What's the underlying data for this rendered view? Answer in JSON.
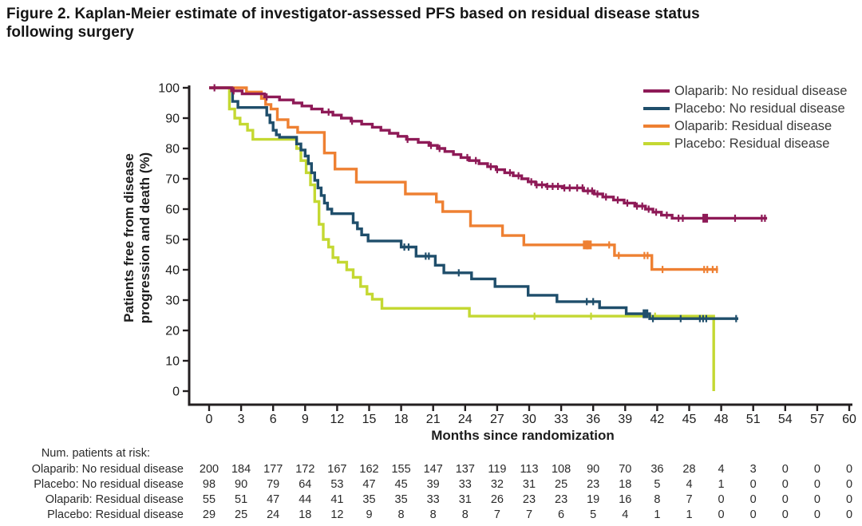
{
  "title": {
    "line1": "Figure 2. Kaplan-Meier estimate of investigator-assessed PFS based on residual disease status",
    "line2": "following surgery"
  },
  "chart_data": {
    "type": "line",
    "subtype": "kaplan-meier-step",
    "xlabel": "Months since randomization",
    "ylabel": "Patients free from disease progression and death (%)",
    "xlim": [
      0,
      60
    ],
    "ylim": [
      0,
      100
    ],
    "x_ticks": [
      0,
      3,
      6,
      9,
      12,
      15,
      18,
      21,
      24,
      27,
      30,
      33,
      36,
      39,
      42,
      45,
      48,
      51,
      54,
      57,
      60
    ],
    "y_ticks": [
      0,
      10,
      20,
      30,
      40,
      50,
      60,
      70,
      80,
      90,
      100
    ],
    "grid": "off",
    "legend_position": "top-right",
    "axis_color": "#231f20",
    "series": [
      {
        "name": "Olaparib: No residual disease",
        "color": "#8e1a57",
        "steps": [
          [
            0,
            100
          ],
          [
            2.1,
            99
          ],
          [
            3.1,
            98
          ],
          [
            5.2,
            97
          ],
          [
            6.6,
            96
          ],
          [
            7.9,
            95
          ],
          [
            8.7,
            94
          ],
          [
            9.6,
            93
          ],
          [
            10.6,
            92
          ],
          [
            11.6,
            91
          ],
          [
            12.4,
            90
          ],
          [
            13.3,
            89
          ],
          [
            14.3,
            88
          ],
          [
            15.3,
            87
          ],
          [
            16.1,
            86
          ],
          [
            16.9,
            85
          ],
          [
            17.7,
            84
          ],
          [
            18.5,
            83
          ],
          [
            19.6,
            82
          ],
          [
            20.6,
            81
          ],
          [
            21.4,
            80
          ],
          [
            22.1,
            79
          ],
          [
            22.9,
            78
          ],
          [
            23.6,
            77
          ],
          [
            24.4,
            76
          ],
          [
            25.3,
            75
          ],
          [
            26.1,
            74
          ],
          [
            26.9,
            73
          ],
          [
            27.7,
            72
          ],
          [
            28.5,
            71
          ],
          [
            29.3,
            70
          ],
          [
            29.9,
            69
          ],
          [
            30.6,
            68
          ],
          [
            31.6,
            67.5
          ],
          [
            33.1,
            67
          ],
          [
            35.1,
            66
          ],
          [
            36.1,
            65
          ],
          [
            36.9,
            64
          ],
          [
            37.9,
            63
          ],
          [
            38.9,
            62
          ],
          [
            39.9,
            61
          ],
          [
            40.9,
            60
          ],
          [
            41.6,
            59
          ],
          [
            42.4,
            58
          ],
          [
            43.4,
            57
          ]
        ],
        "end_month": 52.3,
        "censors": [
          0.5,
          2.3,
          5.4,
          11.2,
          13.4,
          18.6,
          20.8,
          21.6,
          24.2,
          25.0,
          26.4,
          27.0,
          28.2,
          29.0,
          30.2,
          30.7,
          31.2,
          31.7,
          32.2,
          32.7,
          33.3,
          33.8,
          34.5,
          35.0,
          35.5,
          35.9,
          36.4,
          37.2,
          38.3,
          39.2,
          40.1,
          40.6,
          41.2,
          41.9,
          42.9,
          44.0,
          44.4,
          49.3,
          51.8,
          52.1
        ],
        "square_censors": [
          46.5
        ]
      },
      {
        "name": "Placebo: No residual disease",
        "color": "#1f4e6b",
        "steps": [
          [
            0,
            100
          ],
          [
            2.2,
            95.5
          ],
          [
            2.7,
            93.5
          ],
          [
            5.4,
            91
          ],
          [
            5.7,
            88.5
          ],
          [
            6.0,
            86
          ],
          [
            6.3,
            84.5
          ],
          [
            6.6,
            83.7
          ],
          [
            8.2,
            81.5
          ],
          [
            8.6,
            79.5
          ],
          [
            9.0,
            77.5
          ],
          [
            9.3,
            75
          ],
          [
            9.6,
            72
          ],
          [
            9.9,
            69.5
          ],
          [
            10.2,
            67
          ],
          [
            10.5,
            64.5
          ],
          [
            10.8,
            62
          ],
          [
            11.1,
            60
          ],
          [
            11.5,
            58.5
          ],
          [
            13.5,
            55.5
          ],
          [
            13.9,
            53.5
          ],
          [
            14.3,
            51.5
          ],
          [
            14.9,
            49.5
          ],
          [
            18.0,
            47.5
          ],
          [
            19.4,
            44.5
          ],
          [
            21.2,
            41.5
          ],
          [
            22.0,
            39
          ],
          [
            24.6,
            37
          ],
          [
            26.8,
            34.5
          ],
          [
            29.9,
            31.6
          ],
          [
            32.6,
            29.5
          ],
          [
            36.6,
            27.5
          ],
          [
            39.1,
            25.5
          ],
          [
            41.3,
            23.9
          ]
        ],
        "end_month": 49.6,
        "censors": [
          18.3,
          18.7,
          20.3,
          20.6,
          23.4,
          35.4,
          36.0,
          41.6,
          44.2,
          46.0,
          46.3,
          46.6,
          49.4
        ],
        "square_censors": [
          40.9
        ]
      },
      {
        "name": "Olaparib: Residual disease",
        "color": "#ee8032",
        "steps": [
          [
            0,
            100
          ],
          [
            3.5,
            98.6
          ],
          [
            4.9,
            96.5
          ],
          [
            5.3,
            94.5
          ],
          [
            5.8,
            93
          ],
          [
            6.4,
            89.5
          ],
          [
            7.4,
            87
          ],
          [
            8.3,
            85.3
          ],
          [
            10.8,
            78.5
          ],
          [
            11.8,
            73.2
          ],
          [
            13.8,
            68.9
          ],
          [
            18.4,
            65
          ],
          [
            21.3,
            62.4
          ],
          [
            21.9,
            59.2
          ],
          [
            24.5,
            54.5
          ],
          [
            27.5,
            51.3
          ],
          [
            29.5,
            48.2
          ],
          [
            38.0,
            44.7
          ],
          [
            41.5,
            40.1
          ]
        ],
        "end_month": 47.7,
        "censors": [
          37.5,
          38.4,
          40.8,
          41.1,
          42.5,
          46.4,
          46.7,
          47.2,
          47.6
        ],
        "square_censors": [
          35.3,
          35.6
        ]
      },
      {
        "name": "Placebo: Residual disease",
        "color": "#c4d832",
        "steps": [
          [
            0,
            100
          ],
          [
            1.9,
            93
          ],
          [
            2.4,
            90
          ],
          [
            2.9,
            88
          ],
          [
            3.6,
            86
          ],
          [
            4.1,
            83
          ],
          [
            8.2,
            80
          ],
          [
            8.6,
            76
          ],
          [
            9.1,
            72
          ],
          [
            9.5,
            68
          ],
          [
            9.9,
            62.5
          ],
          [
            10.3,
            55
          ],
          [
            10.7,
            50
          ],
          [
            11.2,
            47.5
          ],
          [
            11.6,
            44
          ],
          [
            12.1,
            42.5
          ],
          [
            12.9,
            40
          ],
          [
            13.5,
            37.5
          ],
          [
            14.2,
            34.5
          ],
          [
            14.8,
            32
          ],
          [
            15.3,
            30.3
          ],
          [
            16.2,
            27.3
          ],
          [
            24.4,
            24.7
          ],
          [
            47.3,
            0
          ]
        ],
        "end_month": 47.3,
        "censors": [
          30.5,
          35.8,
          41.8
        ],
        "square_censors": []
      }
    ]
  },
  "risk_table": {
    "header": "Num. patients at risk:",
    "months": [
      0,
      3,
      6,
      9,
      12,
      15,
      18,
      21,
      24,
      27,
      30,
      33,
      36,
      39,
      42,
      45,
      48,
      51,
      54,
      57,
      60
    ],
    "rows": [
      {
        "label": "Olaparib: No residual disease",
        "values": [
          200,
          184,
          177,
          172,
          167,
          162,
          155,
          147,
          137,
          119,
          113,
          108,
          90,
          70,
          36,
          28,
          4,
          3,
          0,
          0,
          0
        ]
      },
      {
        "label": "Placebo: No residual disease",
        "values": [
          98,
          90,
          79,
          64,
          53,
          47,
          45,
          39,
          33,
          32,
          31,
          25,
          23,
          18,
          5,
          4,
          1,
          0,
          0,
          0,
          0
        ]
      },
      {
        "label": "Olaparib: Residual disease",
        "values": [
          55,
          51,
          47,
          44,
          41,
          35,
          35,
          33,
          31,
          26,
          23,
          23,
          19,
          16,
          8,
          7,
          0,
          0,
          0,
          0,
          0
        ]
      },
      {
        "label": "Placebo: Residual disease",
        "values": [
          29,
          25,
          24,
          18,
          12,
          9,
          8,
          8,
          8,
          7,
          7,
          6,
          5,
          4,
          1,
          1,
          0,
          0,
          0,
          0,
          0
        ]
      }
    ]
  }
}
